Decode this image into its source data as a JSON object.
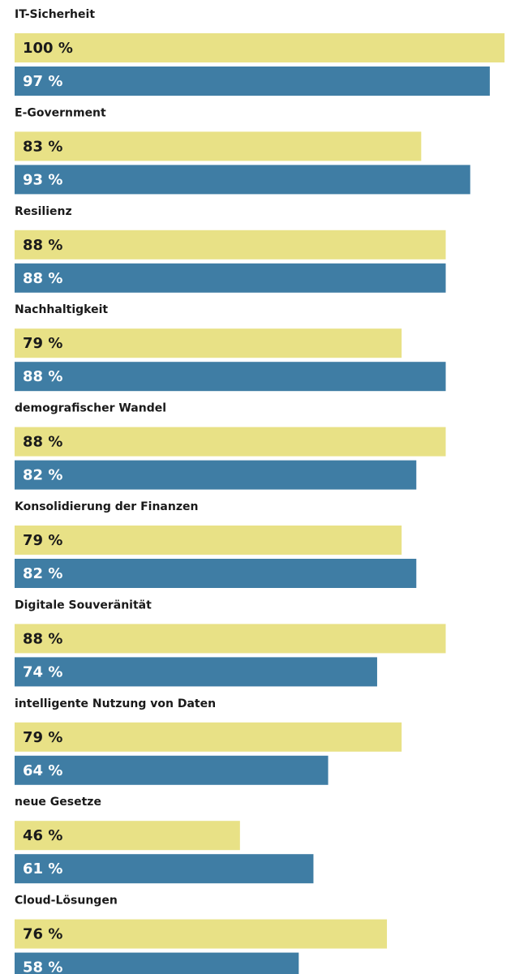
{
  "chart_data": {
    "type": "bar",
    "orientation": "horizontal",
    "categories": [
      "IT-Sicherheit",
      "E-Government",
      "Resilienz",
      "Nachhaltigkeit",
      "demografischer Wandel",
      "Konsolidierung der Finanzen",
      "Digitale Souveränität",
      "intelligente Nutzung von Daten",
      "neue Gesetze",
      "Cloud-Lösungen"
    ],
    "series": [
      {
        "color": "#e8e186",
        "label_color": "#1a1a1a",
        "values": [
          100,
          83,
          88,
          79,
          88,
          79,
          88,
          79,
          46,
          76
        ],
        "value_labels": [
          "100 %",
          "83 %",
          "88 %",
          "79 %",
          "88 %",
          "79 %",
          "88 %",
          "79 %",
          "46 %",
          "76 %"
        ]
      },
      {
        "color": "#3f7da4",
        "label_color": "#ffffff",
        "values": [
          97,
          93,
          88,
          88,
          82,
          82,
          74,
          64,
          61,
          58
        ],
        "value_labels": [
          "97 %",
          "93 %",
          "88 %",
          "88 %",
          "82 %",
          "82 %",
          "74 %",
          "64 %",
          "61 %",
          "58 %"
        ]
      }
    ],
    "xlim": [
      0,
      100
    ]
  }
}
